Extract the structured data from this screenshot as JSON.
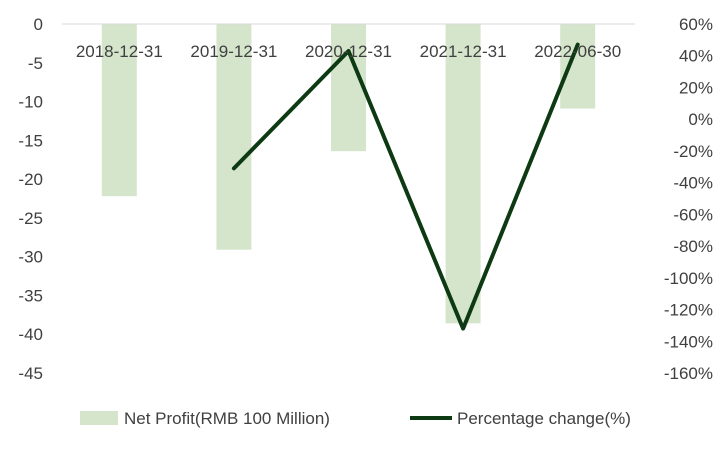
{
  "chart_data": {
    "type": "bar",
    "categories": [
      "2018-12-31",
      "2019-12-31",
      "2020-12-31",
      "2021-12-31",
      "2022-06-30"
    ],
    "series": [
      {
        "name": "Net Profit(RMB 100 Million)",
        "kind": "bar",
        "axis": "left",
        "color": "#d5e5cc",
        "values": [
          -22.2,
          -29.1,
          -16.4,
          -38.6,
          -10.9
        ]
      },
      {
        "name": "Percentage change(%)",
        "kind": "line",
        "axis": "right",
        "color": "#0d3a12",
        "values": [
          null,
          -31,
          43,
          -132,
          47
        ]
      }
    ],
    "y_left": {
      "min": -45,
      "max": 0,
      "step": 5,
      "ticks": [
        "0",
        "-5",
        "-10",
        "-15",
        "-20",
        "-25",
        "-30",
        "-35",
        "-40",
        "-45"
      ]
    },
    "y_right": {
      "min": -160,
      "max": 60,
      "step": 20,
      "ticks": [
        "60%",
        "40%",
        "20%",
        "0%",
        "-20%",
        "-40%",
        "-60%",
        "-80%",
        "-100%",
        "-120%",
        "-140%",
        "-160%"
      ]
    },
    "title": "",
    "xlabel": "",
    "ylabel": "",
    "grid": false,
    "legend_position": "bottom"
  }
}
